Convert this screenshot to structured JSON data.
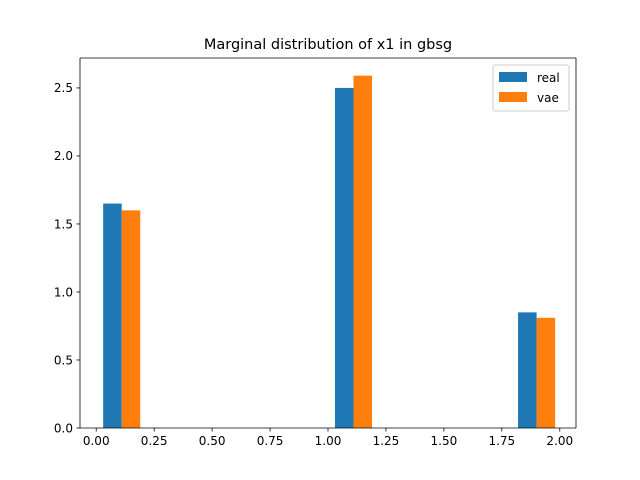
{
  "chart_data": {
    "type": "bar",
    "title": "Marginal distribution of x1 in gbsg",
    "xlabel": "",
    "ylabel": "",
    "xlim": [
      -0.07,
      2.07
    ],
    "ylim": [
      0,
      2.72
    ],
    "x_ticks": [
      0.0,
      0.25,
      0.5,
      0.75,
      1.0,
      1.25,
      1.5,
      1.75,
      2.0
    ],
    "x_tick_labels": [
      "0.00",
      "0.25",
      "0.50",
      "0.75",
      "1.00",
      "1.25",
      "1.50",
      "1.75",
      "2.00"
    ],
    "y_ticks": [
      0.0,
      0.5,
      1.0,
      1.5,
      2.0,
      2.5
    ],
    "y_tick_labels": [
      "0.0",
      "0.5",
      "1.0",
      "1.5",
      "2.0",
      "2.5"
    ],
    "grid": false,
    "legend_position": "top-right",
    "series": [
      {
        "name": "real",
        "color": "#1f77b4",
        "bars": [
          {
            "x0": 0.03,
            "x1": 0.11,
            "value": 1.65
          },
          {
            "x0": 1.03,
            "x1": 1.11,
            "value": 2.5
          },
          {
            "x0": 1.82,
            "x1": 1.9,
            "value": 0.85
          }
        ]
      },
      {
        "name": "vae",
        "color": "#ff7f0e",
        "bars": [
          {
            "x0": 0.11,
            "x1": 0.19,
            "value": 1.6
          },
          {
            "x0": 1.11,
            "x1": 1.19,
            "value": 2.59
          },
          {
            "x0": 1.9,
            "x1": 1.98,
            "value": 0.81
          }
        ]
      }
    ]
  }
}
